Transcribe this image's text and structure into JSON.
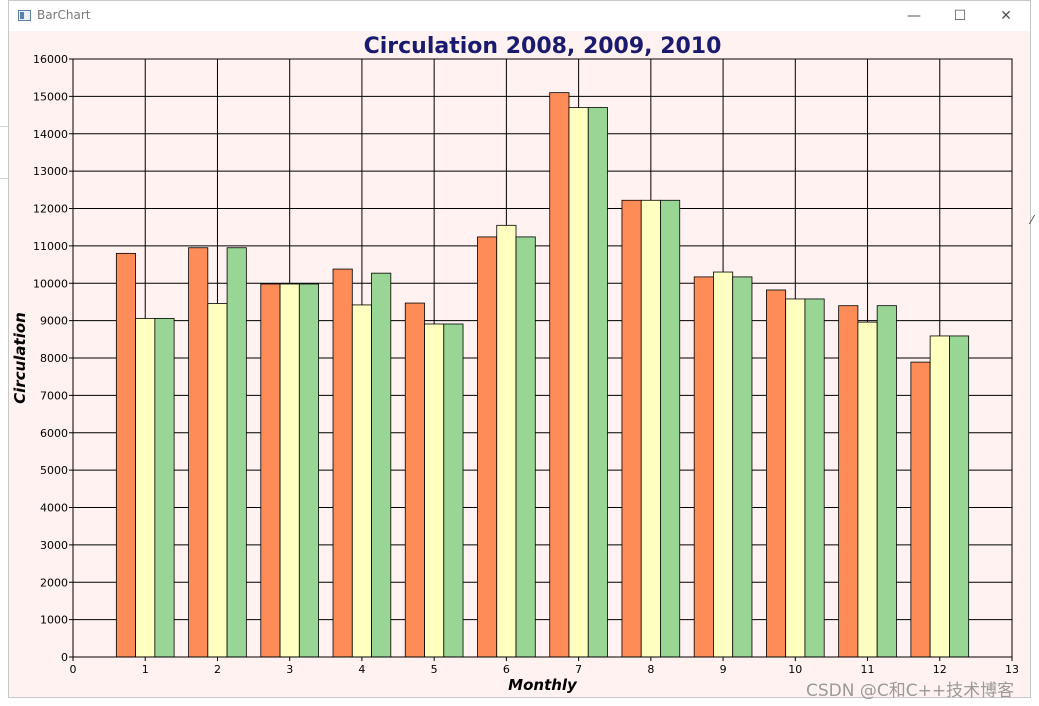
{
  "window": {
    "title": "BarChart",
    "minimize_glyph": "—",
    "maximize_glyph": "☐",
    "close_glyph": "✕"
  },
  "watermark": "CSDN @C和C++技术博客",
  "colors": {
    "series": [
      "#fd8c59",
      "#ffffbf",
      "#99d595"
    ],
    "background": "#fff2f0",
    "title": "#1a1a6e"
  },
  "chart_data": {
    "type": "bar",
    "title": "Circulation 2008, 2009, 2010",
    "xlabel": "Monthly",
    "ylabel": "Circulation",
    "xlim": [
      0,
      13
    ],
    "ylim": [
      0,
      16000
    ],
    "grid": true,
    "x_ticks": [
      "0",
      "1",
      "2",
      "3",
      "4",
      "5",
      "6",
      "7",
      "8",
      "9",
      "10",
      "11",
      "12",
      "13"
    ],
    "y_ticks": [
      "0",
      "1000",
      "2000",
      "3000",
      "4000",
      "5000",
      "6000",
      "7000",
      "8000",
      "9000",
      "10000",
      "11000",
      "12000",
      "13000",
      "14000",
      "15000",
      "16000"
    ],
    "categories": [
      1,
      2,
      3,
      4,
      5,
      6,
      7,
      8,
      9,
      10,
      11,
      12
    ],
    "series": [
      {
        "values": [
          10800,
          10950,
          9980,
          10380,
          9470,
          11240,
          15100,
          12220,
          10170,
          9820,
          9400,
          7890
        ]
      },
      {
        "values": [
          9060,
          9460,
          9980,
          9420,
          8910,
          11550,
          14700,
          12220,
          10300,
          9580,
          8960,
          8590
        ]
      },
      {
        "values": [
          9060,
          10950,
          9980,
          10270,
          8910,
          11240,
          14700,
          12220,
          10170,
          9580,
          9400,
          8590
        ]
      }
    ]
  }
}
